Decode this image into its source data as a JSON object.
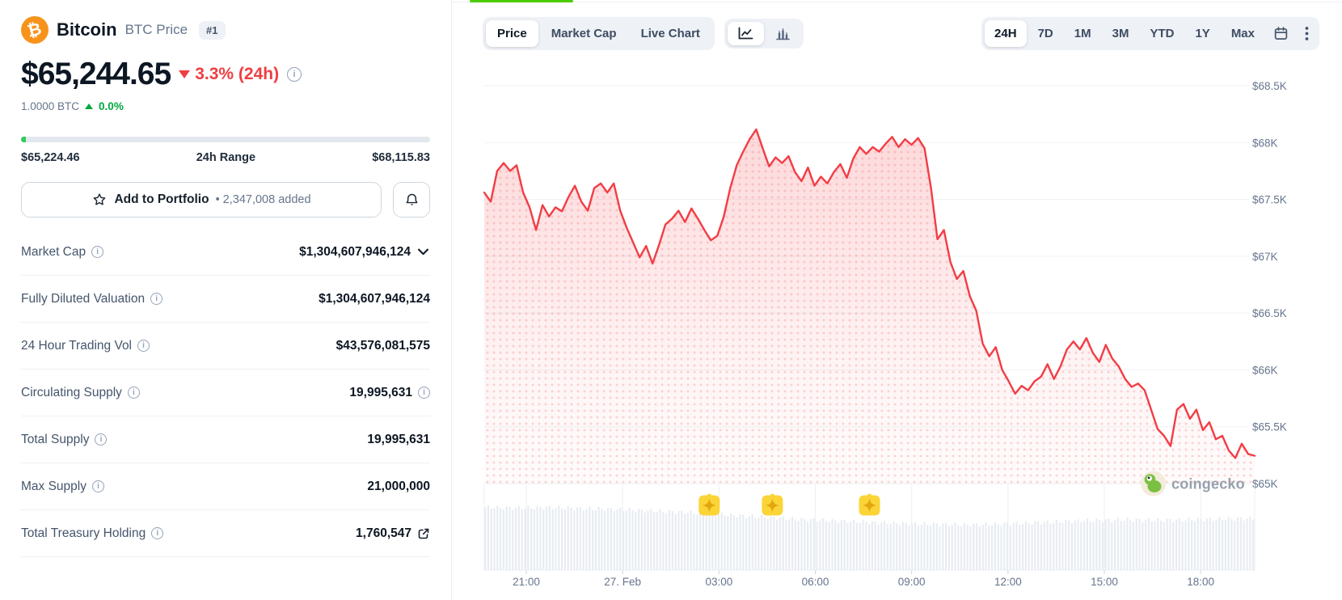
{
  "header": {
    "coin_name": "Bitcoin",
    "coin_sub": "BTC Price",
    "rank_badge": "#1",
    "price": "$65,244.65",
    "change_pct": "3.3% (24h)",
    "unit": "1.0000 BTC",
    "unit_change": "0.0%"
  },
  "range": {
    "low": "$65,224.46",
    "label": "24h Range",
    "high": "$68,115.83"
  },
  "portfolio": {
    "button_label": "Add to Portfolio",
    "added_note": "• 2,347,008 added"
  },
  "stats": {
    "rows": [
      {
        "label": "Market Cap",
        "value": "$1,304,607,946,124",
        "suffix": "chevron-down"
      },
      {
        "label": "Fully Diluted Valuation",
        "value": "$1,304,607,946,124",
        "suffix": null
      },
      {
        "label": "24 Hour Trading Vol",
        "value": "$43,576,081,575",
        "suffix": null
      },
      {
        "label": "Circulating Supply",
        "value": "19,995,631",
        "suffix": "info"
      },
      {
        "label": "Total Supply",
        "value": "19,995,631",
        "suffix": null
      },
      {
        "label": "Max Supply",
        "value": "21,000,000",
        "suffix": null
      },
      {
        "label": "Total Treasury Holding",
        "value": "1,760,547",
        "suffix": "external-link"
      }
    ]
  },
  "toolbar": {
    "tabs": [
      "Price",
      "Market Cap",
      "Live Chart"
    ],
    "active_tab": "Price",
    "chart_types": [
      "line-chart",
      "bar-chart"
    ],
    "active_chart_type": "line-chart",
    "ranges": [
      "24H",
      "7D",
      "1M",
      "3M",
      "YTD",
      "1Y",
      "Max"
    ],
    "active_range": "24H"
  },
  "colors": {
    "accent_red": "#f23d45",
    "accent_green": "#00a83e",
    "brand_green": "#4bcc00",
    "marker_yellow": "#fbd437",
    "marker_star": "#e2a60e",
    "axis_text": "#66758c",
    "gridline": "#eff1f5",
    "volume_bar": "#e8ecf2"
  },
  "chart_data": {
    "type": "area",
    "title": "Bitcoin BTC price, 24H",
    "x_labels": [
      "21:00",
      "27. Feb",
      "03:00",
      "06:00",
      "09:00",
      "12:00",
      "15:00",
      "18:00"
    ],
    "y_tick_labels": [
      "$68.5K",
      "$68K",
      "$67.5K",
      "$67K",
      "$66.5K",
      "$66K",
      "$65.5K",
      "$65K"
    ],
    "y_min": 65000,
    "y_max": 68500,
    "grid": true,
    "legend": "none",
    "series": [
      {
        "name": "BTC/USD",
        "values": [
          67560,
          67480,
          67750,
          67820,
          67750,
          67800,
          67560,
          67430,
          67230,
          67450,
          67350,
          67430,
          67395,
          67520,
          67620,
          67480,
          67400,
          67600,
          67640,
          67560,
          67640,
          67400,
          67250,
          67120,
          66990,
          67090,
          66935,
          67100,
          67280,
          67330,
          67400,
          67300,
          67420,
          67330,
          67230,
          67140,
          67180,
          67350,
          67600,
          67800,
          67920,
          68030,
          68116,
          67950,
          67790,
          67870,
          67820,
          67880,
          67740,
          67660,
          67780,
          67620,
          67700,
          67640,
          67740,
          67810,
          67690,
          67860,
          67960,
          67900,
          67960,
          67920,
          67990,
          68050,
          67960,
          68030,
          67980,
          68040,
          67950,
          67600,
          67150,
          67230,
          66950,
          66800,
          66870,
          66650,
          66520,
          66230,
          66120,
          66200,
          66000,
          65900,
          65790,
          65860,
          65820,
          65900,
          65940,
          66050,
          65920,
          66030,
          66180,
          66250,
          66180,
          66280,
          66150,
          66070,
          66220,
          66100,
          66030,
          65920,
          65850,
          65880,
          65820,
          65650,
          65480,
          65420,
          65330,
          65650,
          65700,
          65570,
          65650,
          65470,
          65540,
          65390,
          65420,
          65290,
          65225,
          65350,
          65260,
          65245
        ]
      }
    ],
    "volume_profile": [
      0.97,
      0.96,
      0.97,
      0.95,
      0.94,
      0.92,
      0.9,
      0.87,
      0.84,
      0.81,
      0.78,
      0.76,
      0.74,
      0.72,
      0.71,
      0.7,
      0.71,
      0.73,
      0.75,
      0.77,
      0.78,
      0.77,
      0.78,
      0.79,
      0.8
    ],
    "event_markers": {
      "icon": "sparkle-badge",
      "fracs": [
        0.292,
        0.374,
        0.5
      ]
    },
    "watermark": "coingecko"
  }
}
